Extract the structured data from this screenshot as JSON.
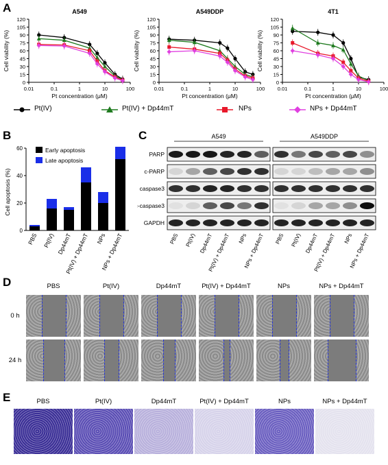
{
  "panels": {
    "a": "A",
    "b": "B",
    "c": "C",
    "d": "D",
    "e": "E"
  },
  "panelA": {
    "ylabel": "Cell viability (%)",
    "xlabel": "Pt concentration (μM)",
    "yticks": [
      "0",
      "15",
      "30",
      "45",
      "60",
      "75",
      "90",
      "105",
      "120"
    ],
    "xticks": [
      "0.01",
      "0.1",
      "1",
      "10",
      "100"
    ],
    "legend": [
      {
        "label": "Pt(IV)",
        "color": "#000000",
        "marker": "circle"
      },
      {
        "label": "Pt(IV) + Dp44mT",
        "color": "#1e7a1e",
        "marker": "triangle"
      },
      {
        "label": "NPs",
        "color": "#e8182a",
        "marker": "square"
      },
      {
        "label": "NPs + Dp44mT",
        "color": "#e040e0",
        "marker": "diamond"
      }
    ]
  },
  "chart_data": [
    {
      "type": "line",
      "title": "A549",
      "xlabel": "Pt concentration (μM)",
      "ylabel": "Cell viability (%)",
      "xscale": "log",
      "xlim": [
        0.01,
        100
      ],
      "ylim": [
        0,
        120
      ],
      "series": [
        {
          "name": "Pt(IV)",
          "x": [
            0.025,
            0.25,
            2.5,
            5,
            10,
            25,
            50
          ],
          "y": [
            90,
            85,
            72,
            55,
            37,
            15,
            6
          ]
        },
        {
          "name": "Pt(IV) + Dp44mT",
          "x": [
            0.025,
            0.25,
            2.5,
            5,
            10,
            25,
            50
          ],
          "y": [
            83,
            80,
            65,
            47,
            30,
            12,
            5
          ]
        },
        {
          "name": "NPs",
          "x": [
            0.025,
            0.25,
            2.5,
            5,
            10,
            25,
            50
          ],
          "y": [
            72,
            71,
            60,
            40,
            22,
            10,
            4
          ]
        },
        {
          "name": "NPs + Dp44mT",
          "x": [
            0.025,
            0.25,
            2.5,
            5,
            10,
            25,
            50
          ],
          "y": [
            70,
            69,
            55,
            35,
            20,
            8,
            3
          ]
        }
      ]
    },
    {
      "type": "line",
      "title": "A549DDP",
      "xlabel": "Pt concentration (μM)",
      "ylabel": "Cell viability (%)",
      "xscale": "log",
      "xlim": [
        0.01,
        100
      ],
      "ylim": [
        0,
        120
      ],
      "series": [
        {
          "name": "Pt(IV)",
          "x": [
            0.025,
            0.25,
            2.5,
            5,
            10,
            25,
            50
          ],
          "y": [
            82,
            80,
            75,
            65,
            45,
            20,
            15
          ]
        },
        {
          "name": "Pt(IV) + Dp44mT",
          "x": [
            0.025,
            0.25,
            2.5,
            5,
            10,
            25,
            50
          ],
          "y": [
            80,
            76,
            60,
            45,
            30,
            15,
            10
          ]
        },
        {
          "name": "NPs",
          "x": [
            0.025,
            0.25,
            2.5,
            5,
            10,
            25,
            50
          ],
          "y": [
            67,
            63,
            55,
            42,
            25,
            12,
            8
          ]
        },
        {
          "name": "NPs + Dp44mT",
          "x": [
            0.025,
            0.25,
            2.5,
            5,
            10,
            25,
            50
          ],
          "y": [
            58,
            60,
            50,
            38,
            22,
            10,
            5
          ]
        }
      ]
    },
    {
      "type": "line",
      "title": "4T1",
      "xlabel": "Pt concentration (μM)",
      "ylabel": "Cell viability (%)",
      "xscale": "log",
      "xlim": [
        0.01,
        100
      ],
      "ylim": [
        0,
        120
      ],
      "series": [
        {
          "name": "Pt(IV)",
          "x": [
            0.025,
            0.25,
            1,
            2.5,
            5,
            10,
            25
          ],
          "y": [
            97,
            95,
            90,
            75,
            45,
            10,
            5
          ]
        },
        {
          "name": "Pt(IV) + Dp44mT",
          "x": [
            0.025,
            0.25,
            1,
            2.5,
            5,
            10,
            25
          ],
          "y": [
            103,
            75,
            70,
            62,
            35,
            12,
            3
          ]
        },
        {
          "name": "NPs",
          "x": [
            0.025,
            0.25,
            1,
            2.5,
            5,
            10,
            25
          ],
          "y": [
            75,
            55,
            50,
            38,
            22,
            8,
            2
          ]
        },
        {
          "name": "NPs + Dp44mT",
          "x": [
            0.025,
            0.25,
            1,
            2.5,
            5,
            10,
            25
          ],
          "y": [
            60,
            52,
            45,
            30,
            15,
            5,
            1
          ]
        }
      ]
    },
    {
      "type": "bar",
      "stacked": true,
      "ylabel": "Cell apoptosis (%)",
      "ylim": [
        0,
        60
      ],
      "yticks": [
        "0",
        "20",
        "40",
        "60"
      ],
      "categories": [
        "PBS",
        "Pt(IV)",
        "Dp44mT",
        "Pt(IV) + Dp44mT",
        "NPs",
        "NPs + Dp44mT"
      ],
      "series": [
        {
          "name": "Early apoptosis",
          "color": "#000000",
          "values": [
            3,
            16,
            15,
            35,
            20,
            52
          ]
        },
        {
          "name": "Late apoptosis",
          "color": "#1a2ee8",
          "values": [
            1,
            7,
            2,
            11,
            8,
            9
          ]
        }
      ]
    }
  ],
  "panelC": {
    "groups": [
      "A549",
      "A549DDP"
    ],
    "rows": [
      "PARP",
      "c-PARP",
      "caspase3",
      "c-caspase3",
      "GAPDH"
    ],
    "lanes": [
      "PBS",
      "Pt(IV)",
      "Dp44mT",
      "Pt(IV) + Dp44mT",
      "NPs",
      "NPs + Dp44mT"
    ]
  },
  "panelD": {
    "columns": [
      "PBS",
      "Pt(IV)",
      "Dp44mT",
      "Pt(IV) + Dp44mT",
      "NPs",
      "NPs + Dp44mT"
    ],
    "rows": [
      "0 h",
      "24 h"
    ]
  },
  "panelE": {
    "columns": [
      "PBS",
      "Pt(IV)",
      "Dp44mT",
      "Pt(IV) + Dp44mT",
      "NPs",
      "NPs + Dp44mT"
    ]
  }
}
